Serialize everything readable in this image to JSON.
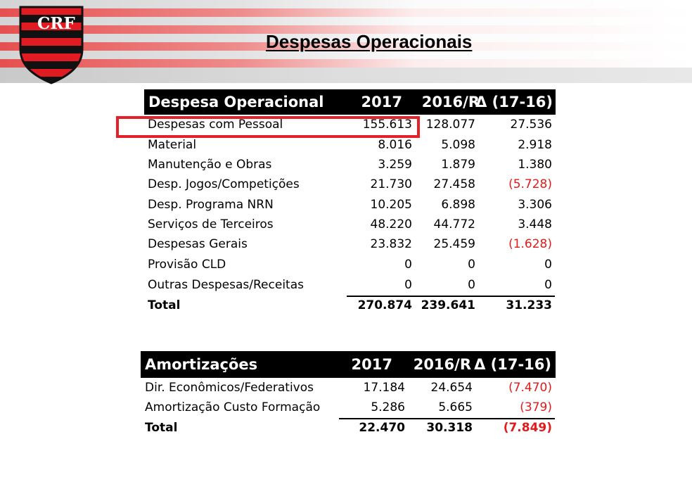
{
  "page": {
    "title": "Despesas Operacionais"
  },
  "colors": {
    "highlight": "#e4202a",
    "negative": "#e31b1b",
    "header_bg": "#000000"
  },
  "icons": {
    "logo": "flamengo-crest-icon",
    "logo_text": "CRF"
  },
  "table1": {
    "headers": [
      "Despesa Operacional",
      "2017",
      "2016/R",
      "Δ (17-16)"
    ],
    "rows": [
      {
        "label": "Despesas com Pessoal",
        "y2017": "155.613",
        "y2016": "128.077",
        "delta": "27.536"
      },
      {
        "label": "Material",
        "y2017": "8.016",
        "y2016": "5.098",
        "delta": "2.918"
      },
      {
        "label": "Manutenção e Obras",
        "y2017": "3.259",
        "y2016": "1.879",
        "delta": "1.380"
      },
      {
        "label": "Desp. Jogos/Competições",
        "y2017": "21.730",
        "y2016": "27.458",
        "delta": "(5.728)"
      },
      {
        "label": "Desp. Programa NRN",
        "y2017": "10.205",
        "y2016": "6.898",
        "delta": "3.306"
      },
      {
        "label": "Serviços de Terceiros",
        "y2017": "48.220",
        "y2016": "44.772",
        "delta": "3.448"
      },
      {
        "label": "Despesas Gerais",
        "y2017": "23.832",
        "y2016": "25.459",
        "delta": "(1.628)"
      },
      {
        "label": "Provisão CLD",
        "y2017": "0",
        "y2016": "0",
        "delta": "0"
      },
      {
        "label": "Outras Despesas/Receitas",
        "y2017": "0",
        "y2016": "0",
        "delta": "0"
      }
    ],
    "total": {
      "label": "Total",
      "y2017": "270.874",
      "y2016": "239.641",
      "delta": "31.233"
    }
  },
  "table2": {
    "headers": [
      "Amortizações",
      "2017",
      "2016/R",
      "Δ (17-16)"
    ],
    "rows": [
      {
        "label": "Dir. Econômicos/Federativos",
        "y2017": "17.184",
        "y2016": "24.654",
        "delta": "(7.470)"
      },
      {
        "label": "Amortização Custo Formação",
        "y2017": "5.286",
        "y2016": "5.665",
        "delta": "(379)"
      }
    ],
    "total": {
      "label": "Total",
      "y2017": "22.470",
      "y2016": "30.318",
      "delta": "(7.849)"
    }
  }
}
